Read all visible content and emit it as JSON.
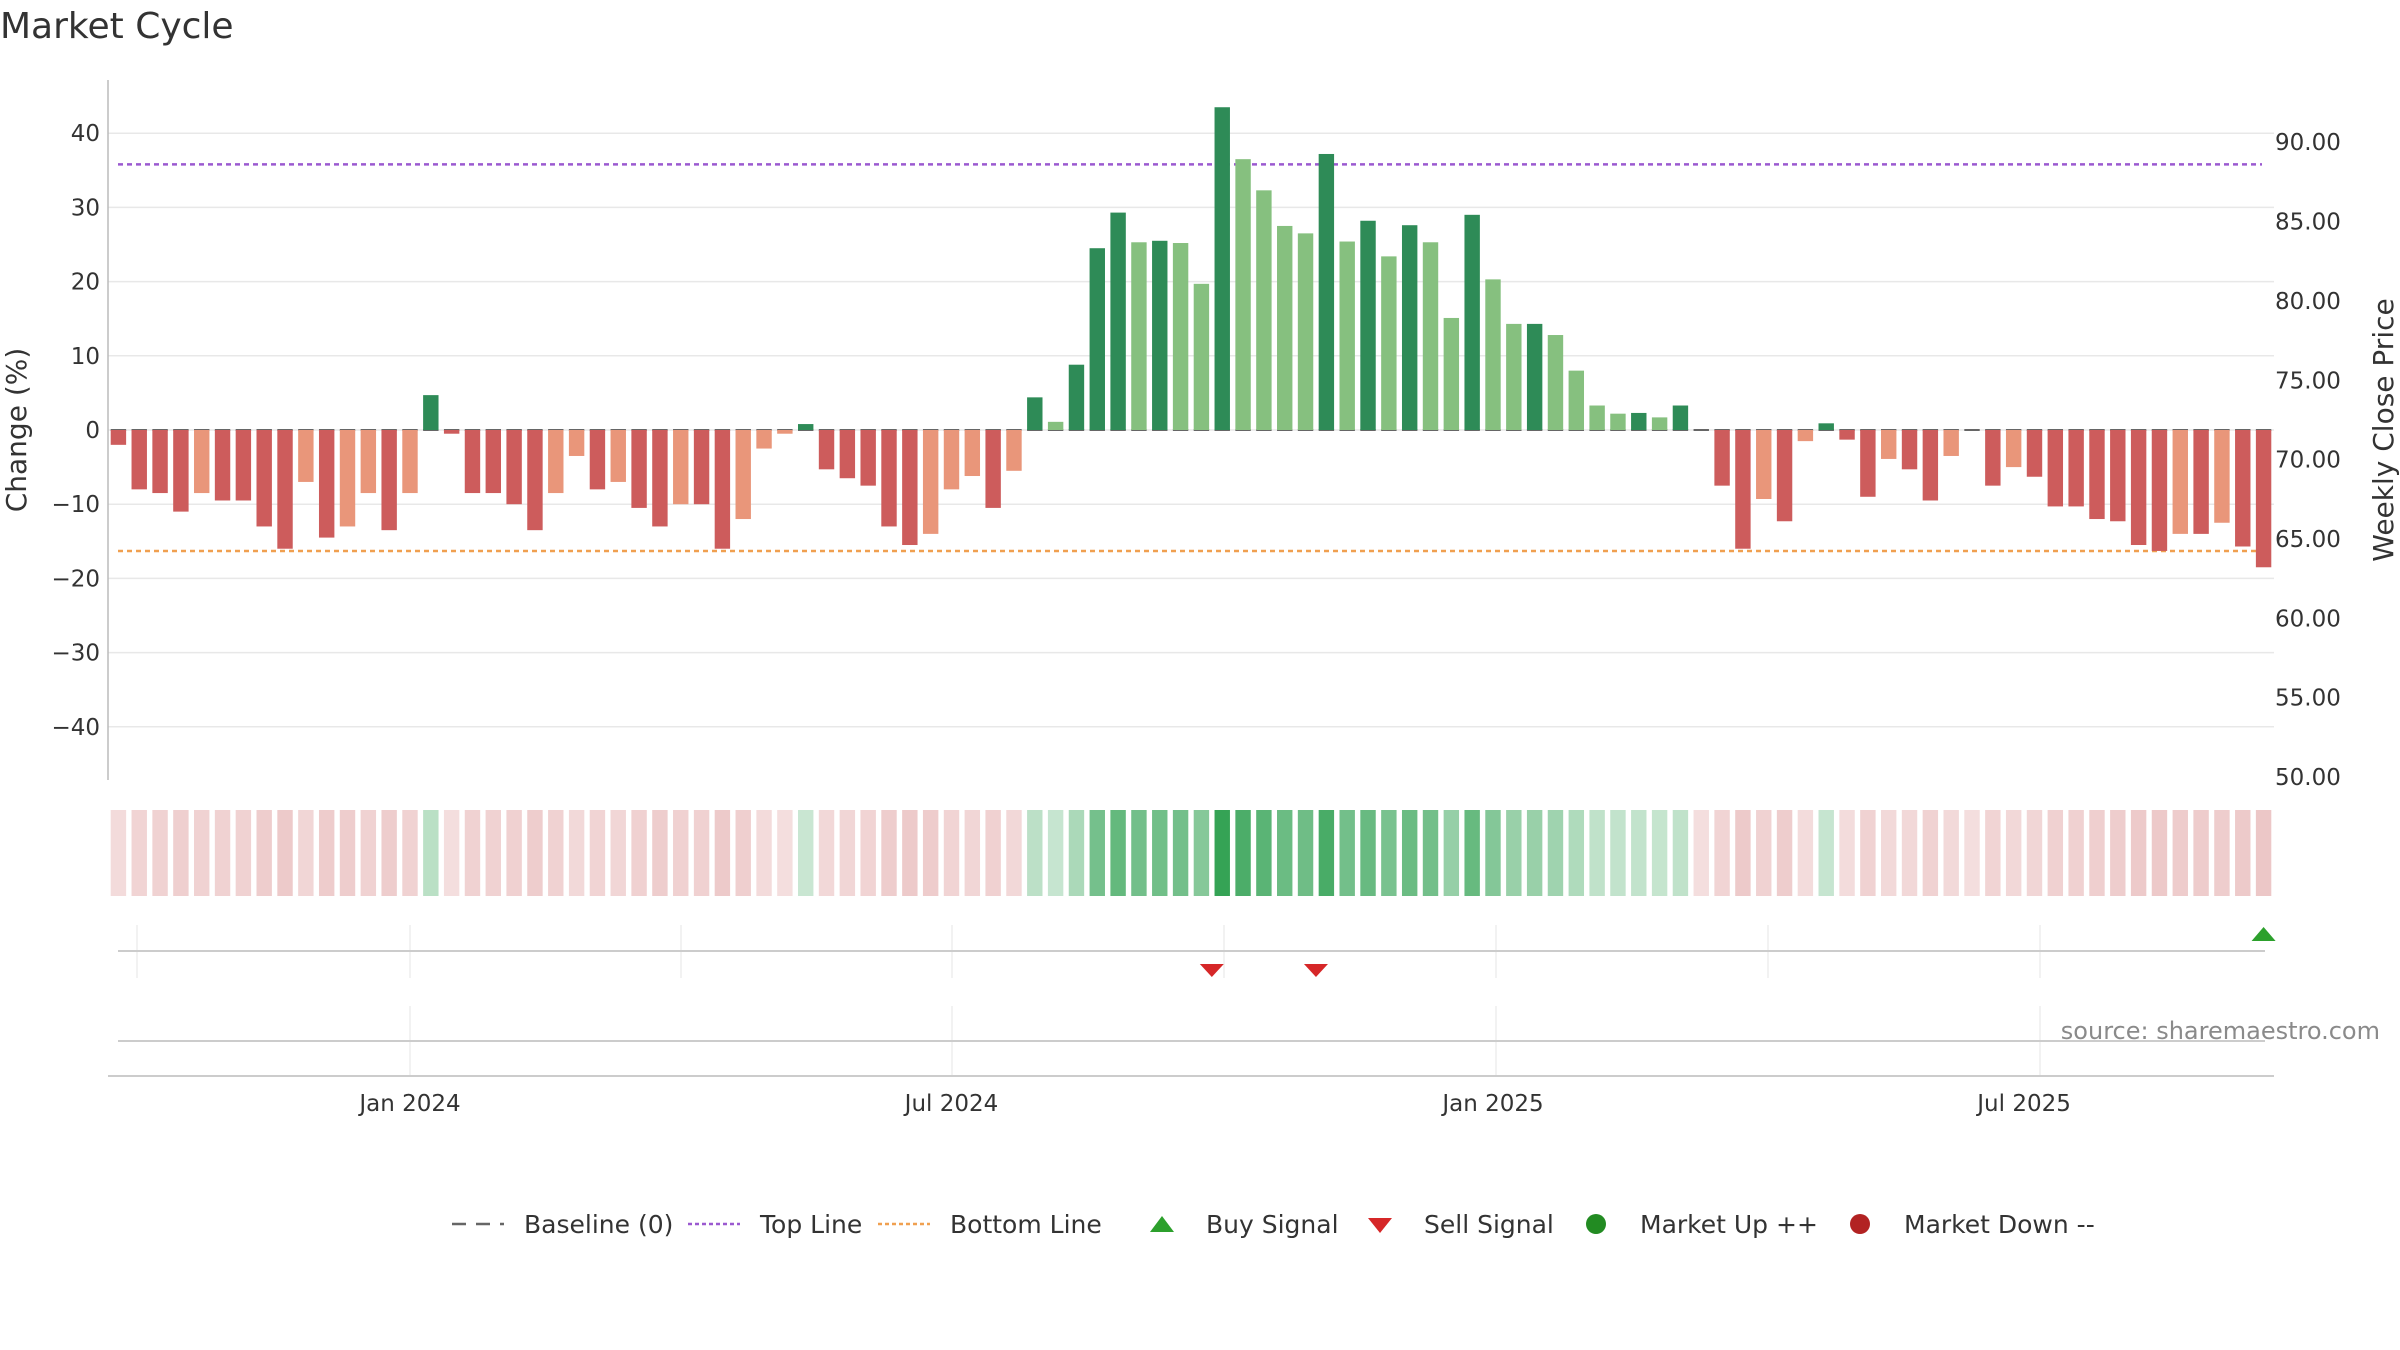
{
  "chart_data": {
    "type": "bar",
    "title": "Market Cycle",
    "ylabel": "Change (%)",
    "y2label": "Weekly Close Price",
    "ylim": [
      -48,
      48
    ],
    "y_ticks": [
      40,
      30,
      20,
      10,
      0,
      -10,
      -20,
      -30,
      -40
    ],
    "y_tick_labels": [
      "40",
      "30",
      "20",
      "10",
      "0",
      "−10",
      "−20",
      "−30",
      "−40"
    ],
    "y2lim": [
      50,
      92.5
    ],
    "y2_ticks": [
      "90.00",
      "85.00",
      "80.00",
      "75.00",
      "70.00",
      "65.00",
      "60.00",
      "55.00",
      "50.00"
    ],
    "x_tick_labels": [
      "Jan 2024",
      "Jul 2024",
      "Jan 2025",
      "Jul 2025"
    ],
    "x_tick_weeks": [
      14.5,
      40.5,
      66.5,
      92
    ],
    "top_line": 35.8,
    "bottom_line": -16.3,
    "grid": true,
    "legend_position": "bottom",
    "values": [
      -2,
      -8,
      -8.5,
      -11,
      -8.5,
      -9.5,
      -9.5,
      -13,
      -16,
      -7,
      -14.5,
      -13,
      -8.5,
      -13.5,
      -8.5,
      4.7,
      -0.5,
      -8.5,
      -8.5,
      -10,
      -13.5,
      -8.5,
      -3.5,
      -8,
      -7,
      -10.5,
      -13,
      -10,
      -10,
      -16,
      -12,
      -2.5,
      -0.5,
      0.8,
      -5.3,
      -6.5,
      -7.5,
      -13,
      -15.5,
      -14,
      -8,
      -6.2,
      -10.5,
      -5.5,
      4.4,
      1.1,
      8.8,
      24.5,
      29.3,
      25.3,
      25.5,
      25.2,
      19.7,
      43.5,
      36.5,
      32.3,
      27.5,
      26.5,
      37.2,
      25.4,
      28.2,
      23.4,
      27.6,
      25.3,
      15.1,
      29,
      20.3,
      14.3,
      14.3,
      12.8,
      8,
      3.3,
      2.2,
      2.3,
      1.7,
      3.3,
      0,
      -7.5,
      -16,
      -9.3,
      -12.3,
      -1.5,
      0.9,
      -1.3,
      -9,
      -3.9,
      -5.3,
      -9.5,
      -3.5,
      0,
      -7.5,
      -5,
      -6.3,
      -10.3,
      -10.3,
      -12,
      -12.3,
      -15.5,
      -16.3,
      -14,
      -14,
      -12.5,
      -15.7,
      -18.5
    ],
    "signals": [
      {
        "type": "sell",
        "week": 53
      },
      {
        "type": "sell",
        "week": 58
      },
      {
        "type": "buy",
        "week": 103.5
      }
    ],
    "colors": {
      "strong_up": "#2e8b57",
      "weak_up": "#86c07f",
      "strong_down": "#cd5c5c",
      "weak_down": "#e9967a",
      "top_line": "#9b59d0",
      "bottom_line": "#f0a050",
      "grid": "#e8e8e8",
      "axis": "#bbbbbb",
      "sell": "#d62728",
      "buy": "#2ca02c"
    }
  },
  "source": "source: sharemaestro.com",
  "legend": [
    {
      "label": "Baseline (0)",
      "symbol": "dash",
      "color": "#666666"
    },
    {
      "label": "Top Line",
      "symbol": "dotted",
      "color": "#9b59d0"
    },
    {
      "label": "Bottom Line",
      "symbol": "dotted",
      "color": "#f0a050"
    },
    {
      "label": "Buy Signal",
      "symbol": "triangle-up",
      "color": "#2ca02c"
    },
    {
      "label": "Sell Signal",
      "symbol": "triangle-down",
      "color": "#d62728"
    },
    {
      "label": "Market Up ++",
      "symbol": "circle",
      "color": "#228b22"
    },
    {
      "label": "Market Down --",
      "symbol": "circle",
      "color": "#b22222"
    }
  ]
}
